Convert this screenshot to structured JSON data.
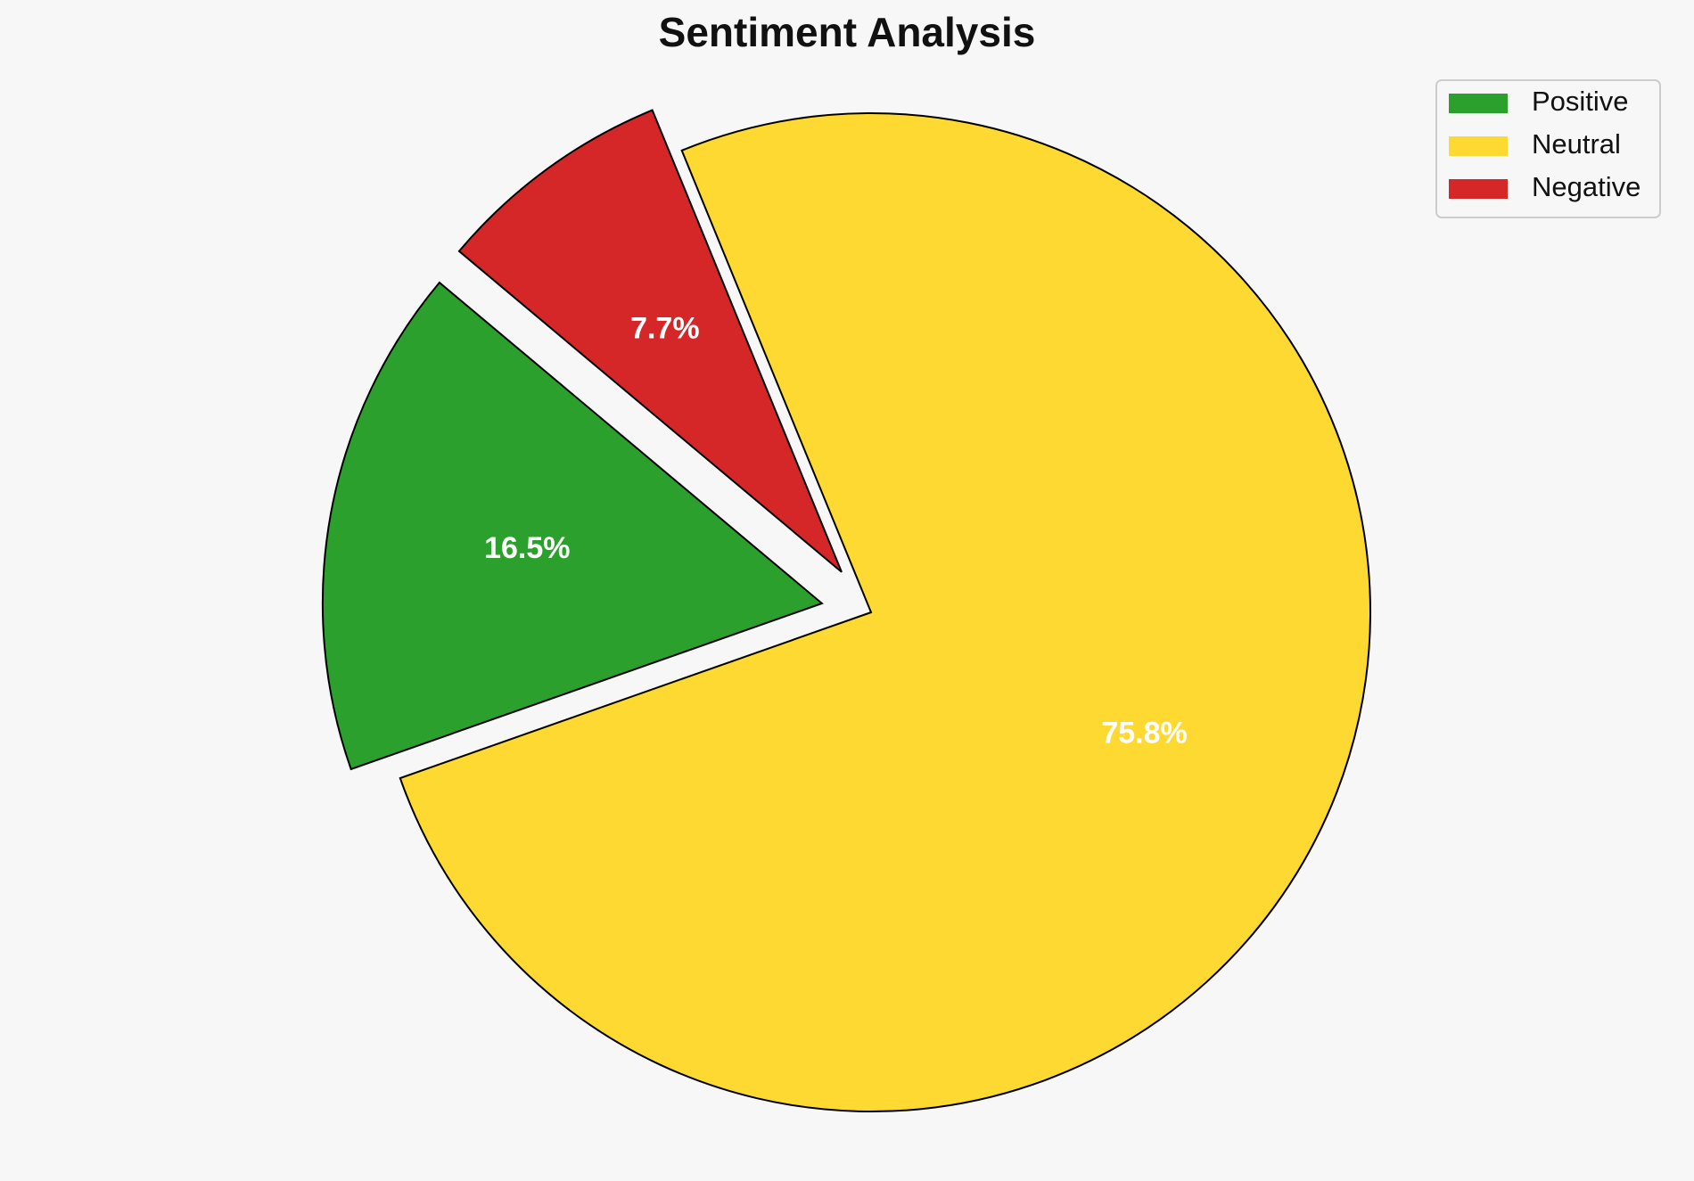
{
  "chart_data": {
    "type": "pie",
    "title": "Sentiment Analysis",
    "categories": [
      "Positive",
      "Neutral",
      "Negative"
    ],
    "values": [
      16.5,
      75.8,
      7.7
    ],
    "value_labels": [
      "16.5%",
      "75.8%",
      "7.7%"
    ],
    "colors": [
      "#2ca02c",
      "#fdd931",
      "#d62728"
    ],
    "legend": "upper right"
  }
}
